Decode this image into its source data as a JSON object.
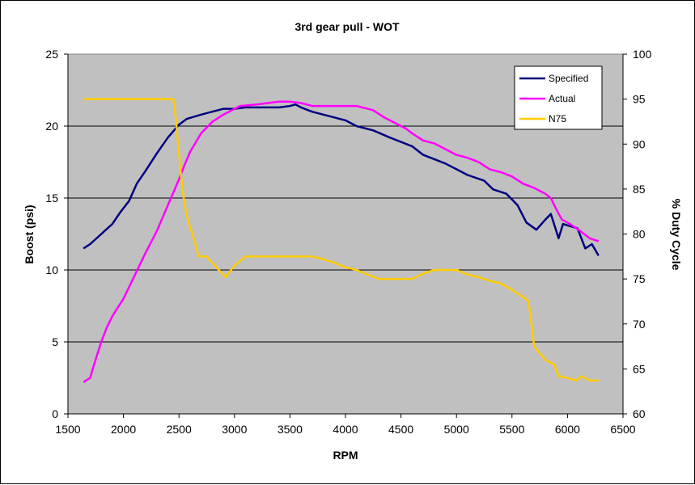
{
  "chart_data": {
    "type": "line",
    "title": "3rd gear pull  - WOT",
    "xlabel": "RPM",
    "ylabel": "Boost (psi)",
    "y2label": "% Duty Cycle",
    "xlim": [
      1500,
      6500
    ],
    "ylim": [
      0,
      25
    ],
    "y2lim": [
      60,
      100
    ],
    "x_ticks": [
      "1500",
      "2000",
      "2500",
      "3000",
      "3500",
      "4000",
      "4500",
      "5000",
      "5500",
      "6000",
      "6500"
    ],
    "y_ticks": [
      "0",
      "5",
      "10",
      "15",
      "20",
      "25"
    ],
    "y2_ticks": [
      "60",
      "65",
      "70",
      "75",
      "80",
      "85",
      "90",
      "95",
      "100"
    ],
    "grid": "horizontal",
    "plot_background": "#c0c0c0",
    "legend_position": "top-right",
    "series": [
      {
        "name": "Specified",
        "axis": "left",
        "color": "#000080",
        "points": [
          [
            1640,
            11.5
          ],
          [
            1700,
            11.8
          ],
          [
            1800,
            12.5
          ],
          [
            1900,
            13.2
          ],
          [
            1970,
            14.0
          ],
          [
            2050,
            14.8
          ],
          [
            2120,
            16.0
          ],
          [
            2200,
            16.9
          ],
          [
            2300,
            18.1
          ],
          [
            2400,
            19.2
          ],
          [
            2500,
            20.1
          ],
          [
            2570,
            20.5
          ],
          [
            2700,
            20.8
          ],
          [
            2800,
            21.0
          ],
          [
            2900,
            21.2
          ],
          [
            3000,
            21.2
          ],
          [
            3100,
            21.3
          ],
          [
            3200,
            21.3
          ],
          [
            3300,
            21.3
          ],
          [
            3400,
            21.3
          ],
          [
            3500,
            21.4
          ],
          [
            3550,
            21.5
          ],
          [
            3600,
            21.3
          ],
          [
            3700,
            21.0
          ],
          [
            3800,
            20.8
          ],
          [
            3900,
            20.6
          ],
          [
            4000,
            20.4
          ],
          [
            4100,
            20.0
          ],
          [
            4250,
            19.7
          ],
          [
            4400,
            19.2
          ],
          [
            4600,
            18.6
          ],
          [
            4700,
            18.0
          ],
          [
            4800,
            17.7
          ],
          [
            4900,
            17.4
          ],
          [
            5000,
            17.0
          ],
          [
            5100,
            16.6
          ],
          [
            5250,
            16.2
          ],
          [
            5330,
            15.6
          ],
          [
            5450,
            15.3
          ],
          [
            5550,
            14.5
          ],
          [
            5630,
            13.3
          ],
          [
            5720,
            12.8
          ],
          [
            5800,
            13.5
          ],
          [
            5850,
            13.9
          ],
          [
            5920,
            12.2
          ],
          [
            5960,
            13.2
          ],
          [
            6000,
            13.1
          ],
          [
            6090,
            12.9
          ],
          [
            6160,
            11.5
          ],
          [
            6220,
            11.8
          ],
          [
            6280,
            11.0
          ]
        ]
      },
      {
        "name": "Actual",
        "axis": "left",
        "color": "#ff00ff",
        "points": [
          [
            1640,
            2.2
          ],
          [
            1700,
            2.5
          ],
          [
            1750,
            3.8
          ],
          [
            1800,
            5.0
          ],
          [
            1850,
            6.0
          ],
          [
            1900,
            6.8
          ],
          [
            2000,
            8.0
          ],
          [
            2100,
            9.6
          ],
          [
            2200,
            11.2
          ],
          [
            2300,
            12.7
          ],
          [
            2400,
            14.5
          ],
          [
            2500,
            16.3
          ],
          [
            2550,
            17.3
          ],
          [
            2600,
            18.2
          ],
          [
            2700,
            19.5
          ],
          [
            2800,
            20.3
          ],
          [
            2900,
            20.8
          ],
          [
            3000,
            21.2
          ],
          [
            3050,
            21.4
          ],
          [
            3200,
            21.5
          ],
          [
            3300,
            21.6
          ],
          [
            3400,
            21.7
          ],
          [
            3500,
            21.7
          ],
          [
            3600,
            21.6
          ],
          [
            3700,
            21.4
          ],
          [
            3800,
            21.4
          ],
          [
            3900,
            21.4
          ],
          [
            4000,
            21.4
          ],
          [
            4100,
            21.4
          ],
          [
            4200,
            21.2
          ],
          [
            4250,
            21.1
          ],
          [
            4350,
            20.6
          ],
          [
            4450,
            20.2
          ],
          [
            4550,
            19.8
          ],
          [
            4600,
            19.5
          ],
          [
            4700,
            19.0
          ],
          [
            4800,
            18.8
          ],
          [
            4900,
            18.4
          ],
          [
            5000,
            18.0
          ],
          [
            5100,
            17.8
          ],
          [
            5200,
            17.5
          ],
          [
            5300,
            17.0
          ],
          [
            5400,
            16.8
          ],
          [
            5500,
            16.5
          ],
          [
            5600,
            16.0
          ],
          [
            5700,
            15.7
          ],
          [
            5800,
            15.3
          ],
          [
            5850,
            15.0
          ],
          [
            5900,
            14.2
          ],
          [
            5950,
            13.5
          ],
          [
            6000,
            13.3
          ],
          [
            6100,
            12.8
          ],
          [
            6200,
            12.2
          ],
          [
            6280,
            12.0
          ]
        ]
      },
      {
        "name": "N75",
        "axis": "right",
        "color": "#ffcc00",
        "points": [
          [
            1640,
            95.0
          ],
          [
            1700,
            95.0
          ],
          [
            1800,
            95.0
          ],
          [
            1900,
            95.0
          ],
          [
            2000,
            95.0
          ],
          [
            2100,
            95.0
          ],
          [
            2200,
            95.0
          ],
          [
            2300,
            95.0
          ],
          [
            2400,
            95.0
          ],
          [
            2450,
            95.0
          ],
          [
            2470,
            93.0
          ],
          [
            2500,
            89.0
          ],
          [
            2530,
            85.0
          ],
          [
            2570,
            82.0
          ],
          [
            2620,
            80.0
          ],
          [
            2680,
            77.5
          ],
          [
            2750,
            77.5
          ],
          [
            2820,
            76.5
          ],
          [
            2920,
            75.2
          ],
          [
            3000,
            76.5
          ],
          [
            3100,
            77.5
          ],
          [
            3200,
            77.5
          ],
          [
            3300,
            77.5
          ],
          [
            3400,
            77.5
          ],
          [
            3500,
            77.5
          ],
          [
            3600,
            77.5
          ],
          [
            3700,
            77.5
          ],
          [
            3800,
            77.2
          ],
          [
            3900,
            76.8
          ],
          [
            4000,
            76.3
          ],
          [
            4100,
            76.0
          ],
          [
            4200,
            75.5
          ],
          [
            4300,
            75.0
          ],
          [
            4400,
            75.0
          ],
          [
            4500,
            75.0
          ],
          [
            4600,
            75.0
          ],
          [
            4700,
            75.6
          ],
          [
            4800,
            76.0
          ],
          [
            4900,
            76.0
          ],
          [
            5000,
            76.0
          ],
          [
            5100,
            75.5
          ],
          [
            5200,
            75.2
          ],
          [
            5300,
            74.8
          ],
          [
            5400,
            74.5
          ],
          [
            5500,
            73.8
          ],
          [
            5600,
            73.0
          ],
          [
            5650,
            72.5
          ],
          [
            5700,
            67.5
          ],
          [
            5800,
            66.0
          ],
          [
            5880,
            65.5
          ],
          [
            5920,
            64.2
          ],
          [
            6000,
            64.0
          ],
          [
            6080,
            63.7
          ],
          [
            6130,
            64.2
          ],
          [
            6200,
            63.7
          ],
          [
            6280,
            63.7
          ]
        ]
      }
    ]
  }
}
